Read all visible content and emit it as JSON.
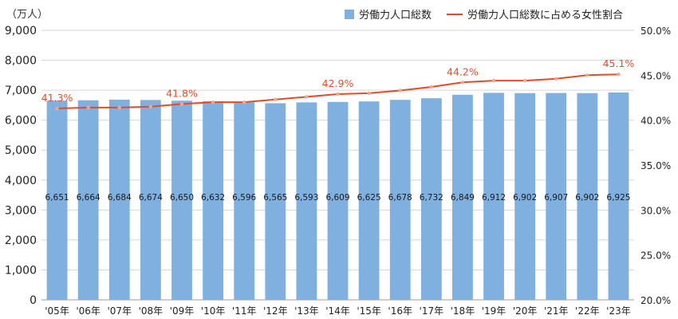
{
  "chart_data": {
    "type": "bar",
    "unit_label": "（万人）",
    "categories": [
      "'05年",
      "'06年",
      "'07年",
      "'08年",
      "'09年",
      "'10年",
      "'11年",
      "'12年",
      "'13年",
      "'14年",
      "'15年",
      "'16年",
      "'17年",
      "'18年",
      "'19年",
      "'20年",
      "'21年",
      "'22年",
      "'23年"
    ],
    "series": [
      {
        "name": "労働力人口総数",
        "type": "bar",
        "axis": "left",
        "color": "#7fb0e0",
        "values": [
          6651,
          6664,
          6684,
          6674,
          6650,
          6632,
          6596,
          6565,
          6593,
          6609,
          6625,
          6678,
          6732,
          6849,
          6912,
          6902,
          6907,
          6902,
          6925
        ],
        "value_labels": [
          "6,651",
          "6,664",
          "6,684",
          "6,674",
          "6,650",
          "6,632",
          "6,596",
          "6,565",
          "6,593",
          "6,609",
          "6,625",
          "6,678",
          "6,732",
          "6,849",
          "6,912",
          "6,902",
          "6,907",
          "6,902",
          "6,925"
        ]
      },
      {
        "name": "労働力人口総数に占める女性割合",
        "type": "line",
        "axis": "right",
        "color": "#e84a24",
        "marker_color": "#f0a890",
        "values": [
          41.3,
          41.4,
          41.4,
          41.5,
          41.8,
          42.0,
          42.0,
          42.3,
          42.6,
          42.9,
          43.0,
          43.3,
          43.7,
          44.2,
          44.4,
          44.4,
          44.6,
          45.0,
          45.1
        ],
        "annotations": [
          {
            "index": 0,
            "label": "41.3%"
          },
          {
            "index": 4,
            "label": "41.8%"
          },
          {
            "index": 9,
            "label": "42.9%"
          },
          {
            "index": 13,
            "label": "44.2%"
          },
          {
            "index": 18,
            "label": "45.1%"
          }
        ]
      }
    ],
    "y_left": {
      "ylim": [
        0,
        9000
      ],
      "ticks": [
        0,
        1000,
        2000,
        3000,
        4000,
        5000,
        6000,
        7000,
        8000,
        9000
      ],
      "tick_labels": [
        "0",
        "1,000",
        "2,000",
        "3,000",
        "4,000",
        "5,000",
        "6,000",
        "7,000",
        "8,000",
        "9,000"
      ]
    },
    "y_right": {
      "ylim": [
        20,
        50
      ],
      "ticks": [
        20,
        25,
        30,
        35,
        40,
        45,
        50
      ],
      "tick_labels": [
        "20.0%",
        "25.0%",
        "30.0%",
        "35.0%",
        "40.0%",
        "45.0%",
        "50.0%"
      ]
    },
    "grid": true,
    "legend_position": "top-right"
  }
}
